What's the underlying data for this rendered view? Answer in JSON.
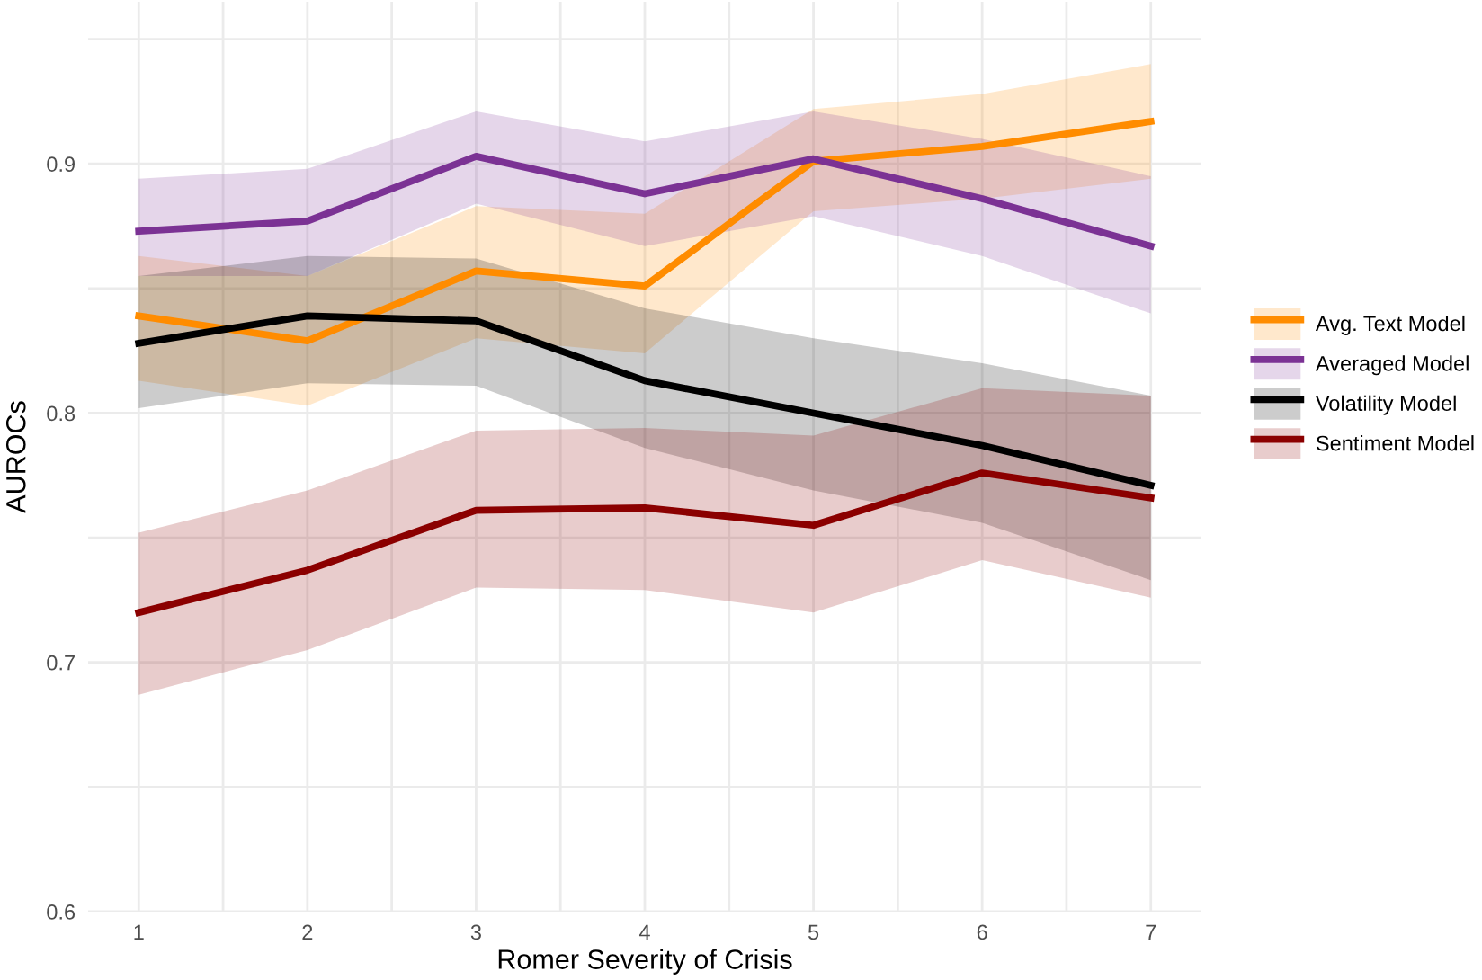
{
  "chart_data": {
    "type": "line",
    "xlabel": "Romer Severity of Crisis",
    "ylabel": "AUROCs",
    "x": [
      1,
      2,
      3,
      4,
      5,
      6,
      7
    ],
    "xlim": [
      0.7,
      7.3
    ],
    "xticks": [
      1,
      {
        "value": 1.5,
        "label": null
      },
      2,
      {
        "value": 2.5,
        "label": null
      },
      3,
      {
        "value": 3.5,
        "label": null
      },
      4,
      {
        "value": 4.5,
        "label": null
      },
      5,
      {
        "value": 5.5,
        "label": null
      },
      6,
      {
        "value": 6.5,
        "label": null
      },
      7
    ],
    "ylim": [
      0.6,
      0.965
    ],
    "yticks": [
      0.6,
      {
        "value": 0.65,
        "label": null
      },
      0.7,
      {
        "value": 0.75,
        "label": null
      },
      0.8,
      {
        "value": 0.85,
        "label": null
      },
      0.9,
      {
        "value": 0.95,
        "label": null
      }
    ],
    "grid": true,
    "legend": "right",
    "series": [
      {
        "name": "Avg. Text Model",
        "color": "#ff8c00",
        "values": [
          0.839,
          0.829,
          0.857,
          0.851,
          0.901,
          0.907,
          0.917
        ],
        "lower": [
          0.813,
          0.803,
          0.83,
          0.824,
          0.881,
          0.886,
          0.894
        ],
        "upper": [
          0.863,
          0.855,
          0.883,
          0.88,
          0.922,
          0.928,
          0.94
        ]
      },
      {
        "name": "Averaged Model",
        "color": "#7b3294",
        "values": [
          0.873,
          0.877,
          0.903,
          0.888,
          0.902,
          0.886,
          0.867
        ],
        "lower": [
          0.855,
          0.855,
          0.884,
          0.867,
          0.879,
          0.863,
          0.84
        ],
        "upper": [
          0.894,
          0.898,
          0.921,
          0.909,
          0.921,
          0.91,
          0.895
        ]
      },
      {
        "name": "Volatility Model",
        "color": "#000000",
        "values": [
          0.828,
          0.839,
          0.837,
          0.813,
          0.8,
          0.787,
          0.771
        ],
        "lower": [
          0.802,
          0.812,
          0.811,
          0.786,
          0.769,
          0.756,
          0.733
        ],
        "upper": [
          0.855,
          0.863,
          0.862,
          0.842,
          0.83,
          0.82,
          0.807
        ]
      },
      {
        "name": "Sentiment Model",
        "color": "#8b0000",
        "values": [
          0.72,
          0.737,
          0.761,
          0.762,
          0.755,
          0.776,
          0.766
        ],
        "lower": [
          0.687,
          0.705,
          0.73,
          0.729,
          0.72,
          0.741,
          0.726
        ],
        "upper": [
          0.752,
          0.769,
          0.793,
          0.794,
          0.791,
          0.81,
          0.807
        ]
      }
    ]
  }
}
